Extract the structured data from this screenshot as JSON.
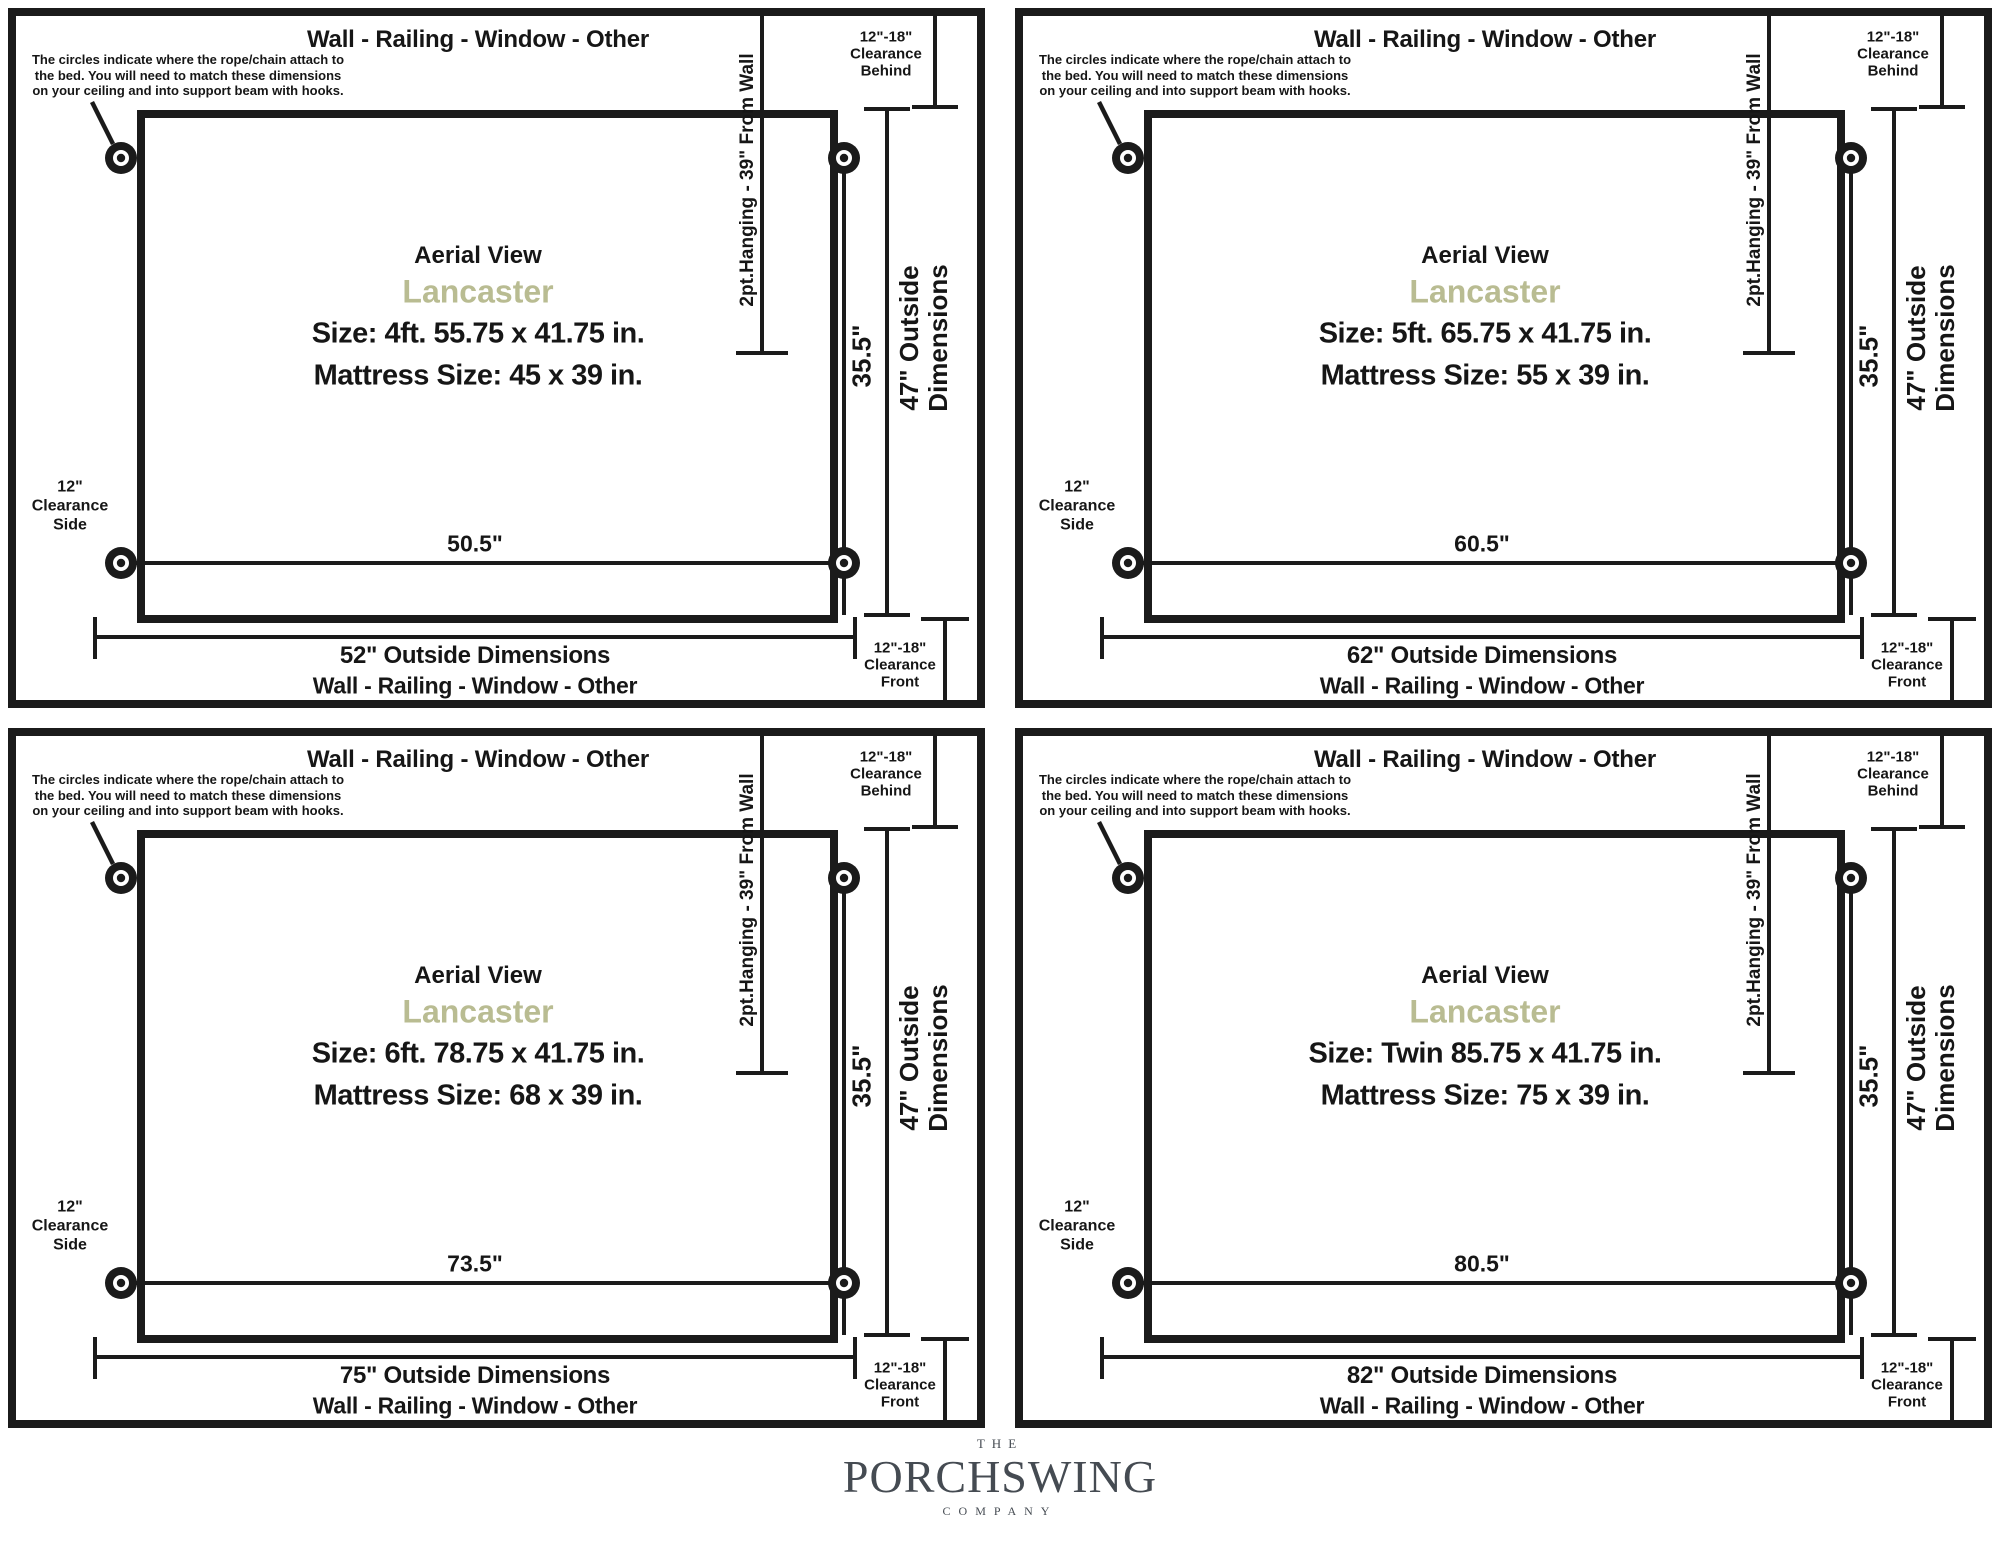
{
  "common": {
    "top_label": "Wall - Railing - Window - Other",
    "note_line1": "The circles indicate where the rope/chain attach to",
    "note_line2": "the bed. You will need to match these dimensions",
    "note_line3": "on your ceiling and into support beam with hooks.",
    "clearance_behind": {
      "line1": "12\"-18\"",
      "line2": "Clearance",
      "line3": "Behind"
    },
    "hanging_label": "2pt.Hanging - 39\" From Wall",
    "aerial_label": "Aerial View",
    "model_name": "Lancaster",
    "depth_label": "35.5\"",
    "outside_vertical_line1": "47\" Outside",
    "outside_vertical_line2": "Dimensions",
    "clearance_side": {
      "line1": "12\"",
      "line2": "Clearance",
      "line3": "Side"
    },
    "clearance_front": {
      "line1": "12\"-18\"",
      "line2": "Clearance",
      "line3": "Front"
    },
    "bottom_wall_label": "Wall - Railing - Window - Other"
  },
  "panels": [
    {
      "size_line": "Size: 4ft. 55.75 x 41.75 in.",
      "mattress_line": "Mattress Size: 45 x 39 in.",
      "inner_width_label": "50.5\"",
      "outside_dimension_label": "52\" Outside Dimensions"
    },
    {
      "size_line": "Size: 5ft. 65.75 x 41.75 in.",
      "mattress_line": "Mattress Size: 55 x 39 in.",
      "inner_width_label": "60.5\"",
      "outside_dimension_label": "62\" Outside Dimensions"
    },
    {
      "size_line": "Size: 6ft. 78.75 x 41.75 in.",
      "mattress_line": "Mattress Size: 68 x 39 in.",
      "inner_width_label": "73.5\"",
      "outside_dimension_label": "75\" Outside Dimensions"
    },
    {
      "size_line": "Size: Twin 85.75 x 41.75 in.",
      "mattress_line": "Mattress Size: 75 x 39 in.",
      "inner_width_label": "80.5\"",
      "outside_dimension_label": "82\" Outside Dimensions"
    }
  ],
  "logo": {
    "the": "THE",
    "name": "PORCHSWING",
    "company": "COMPANY"
  },
  "colors": {
    "line": "#1b1b1b",
    "model_name": "#b9bc92",
    "logo": "#454b52"
  }
}
